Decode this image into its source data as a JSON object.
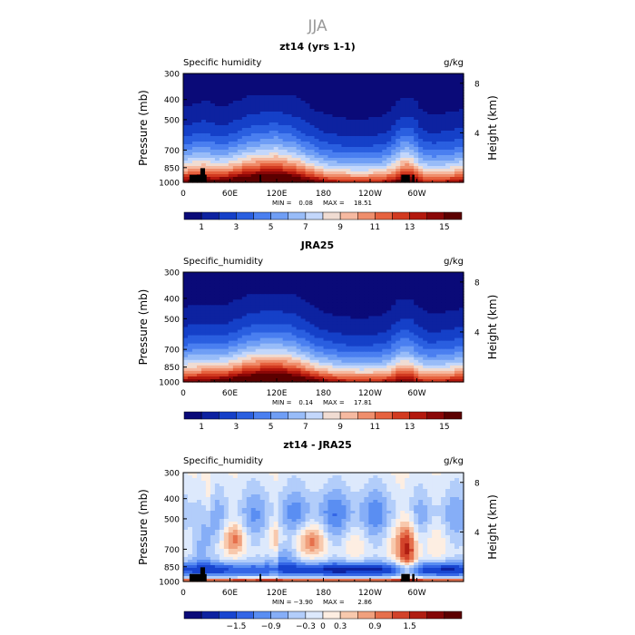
{
  "figure": {
    "season": "JJA"
  },
  "colors": {
    "ramp_abs": [
      "#0a0a78",
      "#0d22a0",
      "#1540c8",
      "#2a5fe0",
      "#4a7ff0",
      "#6f9ef5",
      "#98bcf8",
      "#c3d7fb",
      "#f0dcd2",
      "#f6b9a0",
      "#ef8e6c",
      "#e6623f",
      "#d23a20",
      "#b3180d",
      "#8a0707",
      "#5c0000"
    ],
    "ramp_diff": [
      "#0a0a78",
      "#0d22a0",
      "#1845d0",
      "#3466e6",
      "#5a8ef2",
      "#86aef7",
      "#b2cdfa",
      "#dde9fc",
      "#fdeee2",
      "#f8c9ad",
      "#f0a07d",
      "#e6704c",
      "#d2432a",
      "#b01e12",
      "#840707",
      "#5c0000"
    ],
    "topo": "#000000"
  },
  "chart_data": [
    {
      "type": "heatmap",
      "panel": "top",
      "title": "zt14 (yrs 1-1)",
      "left_label": "Specific humidity",
      "units": "g/kg",
      "ylabel": "Pressure (mb)",
      "ylabel_right": "Height (km)",
      "x_ticks": [
        "0",
        "60E",
        "120E",
        "180",
        "120W",
        "60W"
      ],
      "y_ticks": [
        "300",
        "400",
        "500",
        "700",
        "850",
        "1000"
      ],
      "right_ticks": [
        "8",
        "4"
      ],
      "min_label": "MIN =",
      "min_value": "0.08",
      "max_label": "MAX =",
      "max_value": "18.51",
      "colorbar_labels": [
        "1",
        "3",
        "5",
        "7",
        "9",
        "11",
        "13",
        "15"
      ],
      "levels": [
        0,
        1,
        2,
        3,
        4,
        5,
        6,
        7,
        8,
        9,
        10,
        11,
        12,
        13,
        14,
        15,
        16
      ],
      "mask_topography": true
    },
    {
      "type": "heatmap",
      "panel": "middle",
      "title": "JRA25",
      "left_label": "Specific_humidity",
      "units": "g/kg",
      "ylabel": "Pressure (mb)",
      "ylabel_right": "Height (km)",
      "x_ticks": [
        "0",
        "60E",
        "120E",
        "180",
        "120W",
        "60W"
      ],
      "y_ticks": [
        "300",
        "400",
        "500",
        "700",
        "850",
        "1000"
      ],
      "right_ticks": [
        "8",
        "4"
      ],
      "min_label": "MIN =",
      "min_value": "0.14",
      "max_label": "MAX =",
      "max_value": "17.81",
      "colorbar_labels": [
        "1",
        "3",
        "5",
        "7",
        "9",
        "11",
        "13",
        "15"
      ],
      "levels": [
        0,
        1,
        2,
        3,
        4,
        5,
        6,
        7,
        8,
        9,
        10,
        11,
        12,
        13,
        14,
        15,
        16
      ],
      "mask_topography": false
    },
    {
      "type": "heatmap",
      "panel": "bottom",
      "title": "zt14 - JRA25",
      "left_label": "Specific_humidity",
      "units": "g/kg",
      "ylabel": "Pressure (mb)",
      "ylabel_right": "Height (km)",
      "x_ticks": [
        "0",
        "60E",
        "120E",
        "180",
        "120W",
        "60W"
      ],
      "y_ticks": [
        "300",
        "400",
        "500",
        "700",
        "850",
        "1000"
      ],
      "right_ticks": [
        "8",
        "4"
      ],
      "min_label": "MIN =",
      "min_value": "−3.90",
      "max_label": "MAX =",
      "max_value": "2.86",
      "colorbar_labels": [
        "−1.5",
        "−0.9",
        "−0.3",
        "0",
        "0.3",
        "0.9",
        "1.5"
      ],
      "levels": [
        -2.4,
        -2.1,
        -1.8,
        -1.5,
        -1.2,
        -0.9,
        -0.6,
        -0.3,
        0,
        0.3,
        0.6,
        0.9,
        1.2,
        1.5,
        1.8,
        2.1,
        2.4
      ],
      "mask_topography": true
    }
  ]
}
